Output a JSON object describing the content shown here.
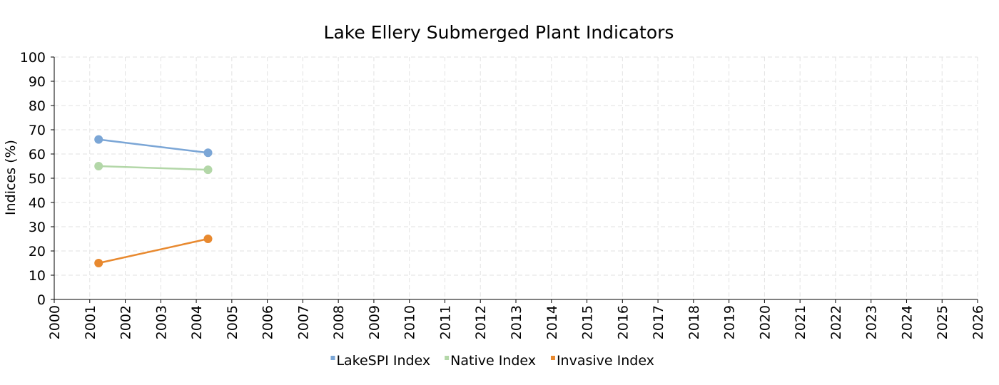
{
  "chart_data": {
    "type": "line",
    "title": "Lake Ellery Submerged Plant Indicators",
    "xlabel": "",
    "ylabel": "Indices (%)",
    "xlim": [
      2000,
      2026
    ],
    "ylim": [
      0,
      100
    ],
    "x_ticks": [
      "2000",
      "2001",
      "2002",
      "2003",
      "2004",
      "2005",
      "2006",
      "2007",
      "2008",
      "2009",
      "2010",
      "2011",
      "2012",
      "2013",
      "2014",
      "2015",
      "2016",
      "2017",
      "2018",
      "2019",
      "2020",
      "2021",
      "2022",
      "2023",
      "2024",
      "2025",
      "2026"
    ],
    "y_ticks": [
      "0",
      "10",
      "20",
      "30",
      "40",
      "50",
      "60",
      "70",
      "80",
      "90",
      "100"
    ],
    "grid": true,
    "legend_position": "bottom",
    "series": [
      {
        "name": "LakeSPI Index",
        "color": "#7ba6d6",
        "x": [
          2001.25,
          2004.33
        ],
        "values": [
          66,
          60.5
        ]
      },
      {
        "name": "Native Index",
        "color": "#b3d7a8",
        "x": [
          2001.25,
          2004.33
        ],
        "values": [
          55,
          53.5
        ]
      },
      {
        "name": "Invasive Index",
        "color": "#e8892f",
        "x": [
          2001.25,
          2004.33
        ],
        "values": [
          15,
          25
        ]
      }
    ]
  }
}
